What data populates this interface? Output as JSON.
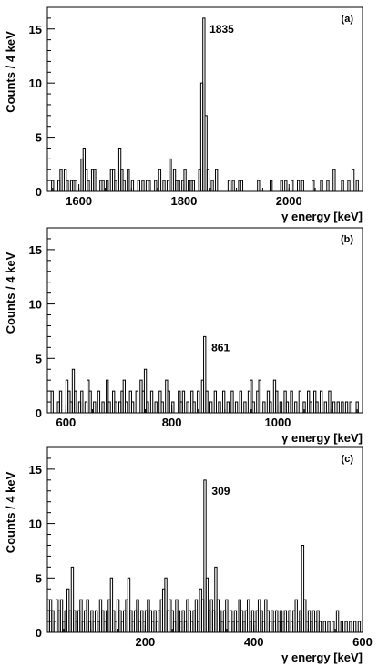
{
  "chart_data": [
    {
      "type": "histogram",
      "panel_label": "(a)",
      "ylabel": "Counts / 4 keV",
      "xlabel": "γ energy [keV]",
      "xlim": [
        1540,
        2140
      ],
      "ylim": [
        0,
        17
      ],
      "x_ticks": [
        1600,
        1800,
        2000
      ],
      "y_ticks": [
        0,
        5,
        10,
        15
      ],
      "bin_width": 4,
      "peak": {
        "label": "1835",
        "x": 1835,
        "height": 16
      },
      "bins": [
        [
          1548,
          1
        ],
        [
          1560,
          1
        ],
        [
          1564,
          2
        ],
        [
          1572,
          2
        ],
        [
          1576,
          1
        ],
        [
          1584,
          1
        ],
        [
          1588,
          1
        ],
        [
          1592,
          1
        ],
        [
          1604,
          3
        ],
        [
          1608,
          4
        ],
        [
          1612,
          2
        ],
        [
          1616,
          1
        ],
        [
          1624,
          2
        ],
        [
          1628,
          2
        ],
        [
          1640,
          1
        ],
        [
          1644,
          1
        ],
        [
          1652,
          1
        ],
        [
          1660,
          2
        ],
        [
          1664,
          2
        ],
        [
          1668,
          1
        ],
        [
          1676,
          4
        ],
        [
          1680,
          2
        ],
        [
          1684,
          1
        ],
        [
          1692,
          2
        ],
        [
          1700,
          1
        ],
        [
          1712,
          1
        ],
        [
          1720,
          1
        ],
        [
          1728,
          1
        ],
        [
          1732,
          1
        ],
        [
          1744,
          1
        ],
        [
          1752,
          2
        ],
        [
          1760,
          1
        ],
        [
          1768,
          1
        ],
        [
          1772,
          3
        ],
        [
          1780,
          2
        ],
        [
          1784,
          1
        ],
        [
          1788,
          1
        ],
        [
          1796,
          1
        ],
        [
          1800,
          2
        ],
        [
          1808,
          1
        ],
        [
          1812,
          1
        ],
        [
          1816,
          1
        ],
        [
          1828,
          2
        ],
        [
          1832,
          10
        ],
        [
          1836,
          16
        ],
        [
          1840,
          7
        ],
        [
          1844,
          2
        ],
        [
          1852,
          1
        ],
        [
          1860,
          2
        ],
        [
          1884,
          1
        ],
        [
          1892,
          1
        ],
        [
          1904,
          1
        ],
        [
          1908,
          1
        ],
        [
          1940,
          1
        ],
        [
          1964,
          1
        ],
        [
          1984,
          1
        ],
        [
          1992,
          1
        ],
        [
          2004,
          1
        ],
        [
          2016,
          1
        ],
        [
          2024,
          1
        ],
        [
          2044,
          1
        ],
        [
          2060,
          1
        ],
        [
          2072,
          1
        ],
        [
          2084,
          2
        ],
        [
          2100,
          1
        ],
        [
          2112,
          1
        ],
        [
          2120,
          2
        ],
        [
          2128,
          1
        ]
      ]
    },
    {
      "type": "histogram",
      "panel_label": "(b)",
      "ylabel": "Counts / 4 keV",
      "xlabel": "γ energy [keV]",
      "xlim": [
        565,
        1160
      ],
      "ylim": [
        0,
        17
      ],
      "x_ticks": [
        600,
        800,
        1000
      ],
      "y_ticks": [
        0,
        5,
        10,
        15
      ],
      "bin_width": 4,
      "peak": {
        "label": "861",
        "x": 861,
        "height": 7
      },
      "bins": [
        [
          572,
          2
        ],
        [
          584,
          1
        ],
        [
          588,
          2
        ],
        [
          600,
          3
        ],
        [
          604,
          2
        ],
        [
          608,
          1
        ],
        [
          612,
          4
        ],
        [
          616,
          2
        ],
        [
          624,
          1
        ],
        [
          628,
          2
        ],
        [
          636,
          1
        ],
        [
          640,
          3
        ],
        [
          644,
          2
        ],
        [
          652,
          1
        ],
        [
          660,
          2
        ],
        [
          668,
          1
        ],
        [
          676,
          3
        ],
        [
          680,
          1
        ],
        [
          688,
          2
        ],
        [
          692,
          1
        ],
        [
          700,
          1
        ],
        [
          704,
          2
        ],
        [
          708,
          3
        ],
        [
          712,
          1
        ],
        [
          720,
          2
        ],
        [
          724,
          1
        ],
        [
          732,
          2
        ],
        [
          740,
          3
        ],
        [
          744,
          2
        ],
        [
          748,
          4
        ],
        [
          752,
          1
        ],
        [
          760,
          2
        ],
        [
          768,
          1
        ],
        [
          776,
          2
        ],
        [
          780,
          1
        ],
        [
          788,
          3
        ],
        [
          792,
          2
        ],
        [
          800,
          1
        ],
        [
          812,
          2
        ],
        [
          816,
          1
        ],
        [
          820,
          2
        ],
        [
          828,
          1
        ],
        [
          836,
          2
        ],
        [
          840,
          1
        ],
        [
          848,
          2
        ],
        [
          856,
          3
        ],
        [
          860,
          7
        ],
        [
          864,
          2
        ],
        [
          872,
          1
        ],
        [
          880,
          2
        ],
        [
          888,
          1
        ],
        [
          896,
          2
        ],
        [
          904,
          1
        ],
        [
          912,
          2
        ],
        [
          920,
          1
        ],
        [
          928,
          2
        ],
        [
          936,
          1
        ],
        [
          944,
          2
        ],
        [
          948,
          3
        ],
        [
          952,
          1
        ],
        [
          960,
          2
        ],
        [
          964,
          3
        ],
        [
          972,
          1
        ],
        [
          980,
          2
        ],
        [
          984,
          1
        ],
        [
          992,
          3
        ],
        [
          996,
          2
        ],
        [
          1004,
          1
        ],
        [
          1012,
          2
        ],
        [
          1016,
          1
        ],
        [
          1024,
          2
        ],
        [
          1032,
          1
        ],
        [
          1040,
          2
        ],
        [
          1048,
          1
        ],
        [
          1056,
          2
        ],
        [
          1060,
          1
        ],
        [
          1068,
          2
        ],
        [
          1072,
          1
        ],
        [
          1080,
          2
        ],
        [
          1088,
          1
        ],
        [
          1096,
          2
        ],
        [
          1104,
          1
        ],
        [
          1112,
          1
        ],
        [
          1120,
          1
        ],
        [
          1128,
          1
        ],
        [
          1136,
          1
        ],
        [
          1148,
          1
        ]
      ]
    },
    {
      "type": "histogram",
      "panel_label": "(c)",
      "ylabel": "Counts / 4 keV",
      "xlabel": "γ energy [keV]",
      "xlim": [
        20,
        600
      ],
      "ylim": [
        0,
        17
      ],
      "x_ticks": [
        200,
        400,
        600
      ],
      "y_ticks": [
        0,
        5,
        10,
        15
      ],
      "bin_width": 4,
      "peak": {
        "label": "309",
        "x": 309,
        "height": 14
      },
      "bins": [
        [
          20,
          2
        ],
        [
          24,
          3
        ],
        [
          28,
          2
        ],
        [
          32,
          1
        ],
        [
          36,
          3
        ],
        [
          40,
          2
        ],
        [
          44,
          3
        ],
        [
          48,
          1
        ],
        [
          52,
          2
        ],
        [
          56,
          4
        ],
        [
          60,
          2
        ],
        [
          64,
          6
        ],
        [
          68,
          2
        ],
        [
          72,
          1
        ],
        [
          76,
          2
        ],
        [
          80,
          3
        ],
        [
          84,
          1
        ],
        [
          88,
          2
        ],
        [
          92,
          3
        ],
        [
          96,
          1
        ],
        [
          100,
          2
        ],
        [
          104,
          1
        ],
        [
          108,
          2
        ],
        [
          112,
          1
        ],
        [
          116,
          3
        ],
        [
          120,
          2
        ],
        [
          124,
          1
        ],
        [
          128,
          2
        ],
        [
          132,
          3
        ],
        [
          136,
          5
        ],
        [
          140,
          2
        ],
        [
          144,
          1
        ],
        [
          148,
          3
        ],
        [
          152,
          2
        ],
        [
          156,
          1
        ],
        [
          160,
          2
        ],
        [
          164,
          3
        ],
        [
          168,
          5
        ],
        [
          172,
          2
        ],
        [
          176,
          1
        ],
        [
          180,
          2
        ],
        [
          184,
          3
        ],
        [
          188,
          1
        ],
        [
          192,
          2
        ],
        [
          196,
          1
        ],
        [
          200,
          2
        ],
        [
          204,
          3
        ],
        [
          208,
          2
        ],
        [
          212,
          1
        ],
        [
          216,
          2
        ],
        [
          220,
          1
        ],
        [
          224,
          2
        ],
        [
          228,
          3
        ],
        [
          232,
          4
        ],
        [
          236,
          5
        ],
        [
          240,
          2
        ],
        [
          244,
          3
        ],
        [
          248,
          2
        ],
        [
          252,
          1
        ],
        [
          256,
          3
        ],
        [
          260,
          2
        ],
        [
          264,
          1
        ],
        [
          268,
          2
        ],
        [
          272,
          1
        ],
        [
          276,
          3
        ],
        [
          280,
          2
        ],
        [
          284,
          1
        ],
        [
          288,
          2
        ],
        [
          292,
          3
        ],
        [
          296,
          1
        ],
        [
          300,
          4
        ],
        [
          304,
          3
        ],
        [
          308,
          14
        ],
        [
          312,
          5
        ],
        [
          316,
          2
        ],
        [
          320,
          3
        ],
        [
          324,
          2
        ],
        [
          328,
          6
        ],
        [
          332,
          3
        ],
        [
          336,
          2
        ],
        [
          340,
          1
        ],
        [
          344,
          2
        ],
        [
          348,
          3
        ],
        [
          352,
          1
        ],
        [
          356,
          2
        ],
        [
          360,
          1
        ],
        [
          364,
          2
        ],
        [
          368,
          1
        ],
        [
          372,
          3
        ],
        [
          376,
          2
        ],
        [
          380,
          1
        ],
        [
          384,
          2
        ],
        [
          388,
          3
        ],
        [
          392,
          1
        ],
        [
          396,
          2
        ],
        [
          400,
          1
        ],
        [
          404,
          2
        ],
        [
          408,
          3
        ],
        [
          412,
          2
        ],
        [
          416,
          1
        ],
        [
          420,
          3
        ],
        [
          424,
          2
        ],
        [
          428,
          1
        ],
        [
          432,
          2
        ],
        [
          436,
          1
        ],
        [
          440,
          2
        ],
        [
          444,
          1
        ],
        [
          448,
          2
        ],
        [
          452,
          1
        ],
        [
          456,
          2
        ],
        [
          460,
          1
        ],
        [
          464,
          2
        ],
        [
          468,
          1
        ],
        [
          472,
          2
        ],
        [
          476,
          3
        ],
        [
          480,
          1
        ],
        [
          484,
          2
        ],
        [
          488,
          8
        ],
        [
          492,
          3
        ],
        [
          496,
          1
        ],
        [
          500,
          2
        ],
        [
          504,
          1
        ],
        [
          508,
          2
        ],
        [
          512,
          1
        ],
        [
          516,
          2
        ],
        [
          520,
          1
        ],
        [
          528,
          1
        ],
        [
          536,
          1
        ],
        [
          544,
          1
        ],
        [
          552,
          2
        ],
        [
          560,
          1
        ],
        [
          568,
          1
        ],
        [
          576,
          1
        ],
        [
          584,
          1
        ],
        [
          592,
          1
        ]
      ]
    }
  ]
}
